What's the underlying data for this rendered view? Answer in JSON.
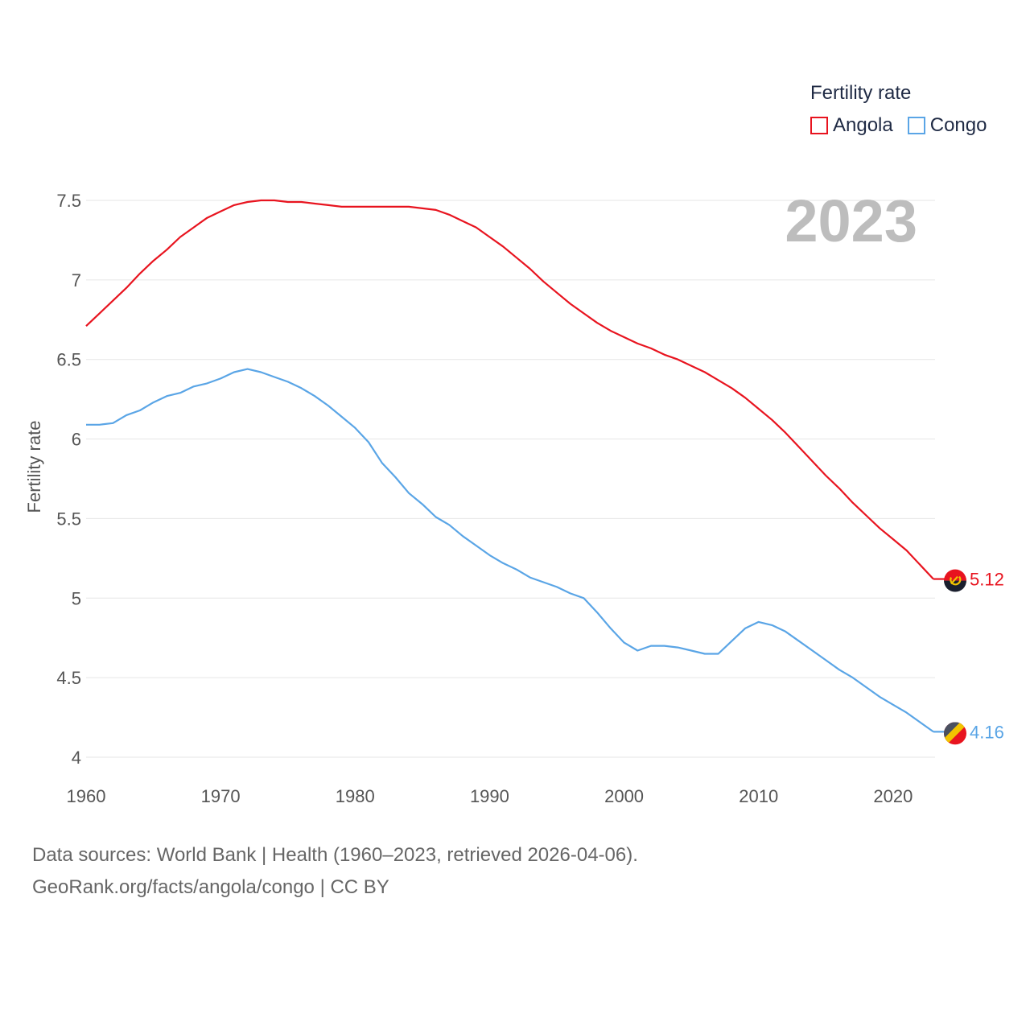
{
  "chart_data": {
    "type": "line",
    "title": "Fertility rate",
    "xlabel": "",
    "ylabel": "Fertility rate",
    "year_badge": "2023",
    "xlim": [
      1960,
      2023
    ],
    "ylim": [
      4,
      7.6
    ],
    "x_ticks": [
      1960,
      1970,
      1980,
      1990,
      2000,
      2010,
      2020
    ],
    "y_ticks": [
      4,
      4.5,
      5,
      5.5,
      6,
      6.5,
      7,
      7.5
    ],
    "y_tick_labels": [
      "4",
      "4.5",
      "5",
      "5.5",
      "6",
      "6.5",
      "7",
      "7.5"
    ],
    "grid": true,
    "legend_position": "top-right",
    "x": [
      1960,
      1961,
      1962,
      1963,
      1964,
      1965,
      1966,
      1967,
      1968,
      1969,
      1970,
      1971,
      1972,
      1973,
      1974,
      1975,
      1976,
      1977,
      1978,
      1979,
      1980,
      1981,
      1982,
      1983,
      1984,
      1985,
      1986,
      1987,
      1988,
      1989,
      1990,
      1991,
      1992,
      1993,
      1994,
      1995,
      1996,
      1997,
      1998,
      1999,
      2000,
      2001,
      2002,
      2003,
      2004,
      2005,
      2006,
      2007,
      2008,
      2009,
      2010,
      2011,
      2012,
      2013,
      2014,
      2015,
      2016,
      2017,
      2018,
      2019,
      2020,
      2021,
      2022,
      2023
    ],
    "series": [
      {
        "name": "Angola",
        "color": "#e8141f",
        "end_label": "5.12",
        "values": [
          6.71,
          6.79,
          6.87,
          6.95,
          7.04,
          7.12,
          7.19,
          7.27,
          7.33,
          7.39,
          7.43,
          7.47,
          7.49,
          7.5,
          7.5,
          7.49,
          7.49,
          7.48,
          7.47,
          7.46,
          7.46,
          7.46,
          7.46,
          7.46,
          7.46,
          7.45,
          7.44,
          7.41,
          7.37,
          7.33,
          7.27,
          7.21,
          7.14,
          7.07,
          6.99,
          6.92,
          6.85,
          6.79,
          6.73,
          6.68,
          6.64,
          6.6,
          6.57,
          6.53,
          6.5,
          6.46,
          6.42,
          6.37,
          6.32,
          6.26,
          6.19,
          6.12,
          6.04,
          5.95,
          5.86,
          5.77,
          5.69,
          5.6,
          5.52,
          5.44,
          5.37,
          5.3,
          5.21,
          5.12
        ]
      },
      {
        "name": "Congo",
        "color": "#5aa5e6",
        "end_label": "4.16",
        "values": [
          6.09,
          6.09,
          6.1,
          6.15,
          6.18,
          6.23,
          6.27,
          6.29,
          6.33,
          6.35,
          6.38,
          6.42,
          6.44,
          6.42,
          6.39,
          6.36,
          6.32,
          6.27,
          6.21,
          6.14,
          6.07,
          5.98,
          5.85,
          5.76,
          5.66,
          5.59,
          5.51,
          5.46,
          5.39,
          5.33,
          5.27,
          5.22,
          5.18,
          5.13,
          5.1,
          5.07,
          5.03,
          5.0,
          4.91,
          4.81,
          4.72,
          4.67,
          4.7,
          4.7,
          4.69,
          4.67,
          4.65,
          4.65,
          4.73,
          4.81,
          4.85,
          4.83,
          4.79,
          4.73,
          4.67,
          4.61,
          4.55,
          4.5,
          4.44,
          4.38,
          4.33,
          4.28,
          4.22,
          4.16
        ]
      }
    ]
  },
  "legend": {
    "title": "Fertility rate",
    "items": [
      {
        "label": "Angola",
        "color": "#e8141f"
      },
      {
        "label": "Congo",
        "color": "#5aa5e6"
      }
    ]
  },
  "footer": {
    "line1": "Data sources: World Bank | Health (1960–2023, retrieved 2026-04-06).",
    "line2": "GeoRank.org/facts/angola/congo | CC BY"
  },
  "flags": {
    "angola": "angola-flag-icon",
    "congo": "congo-flag-icon"
  }
}
